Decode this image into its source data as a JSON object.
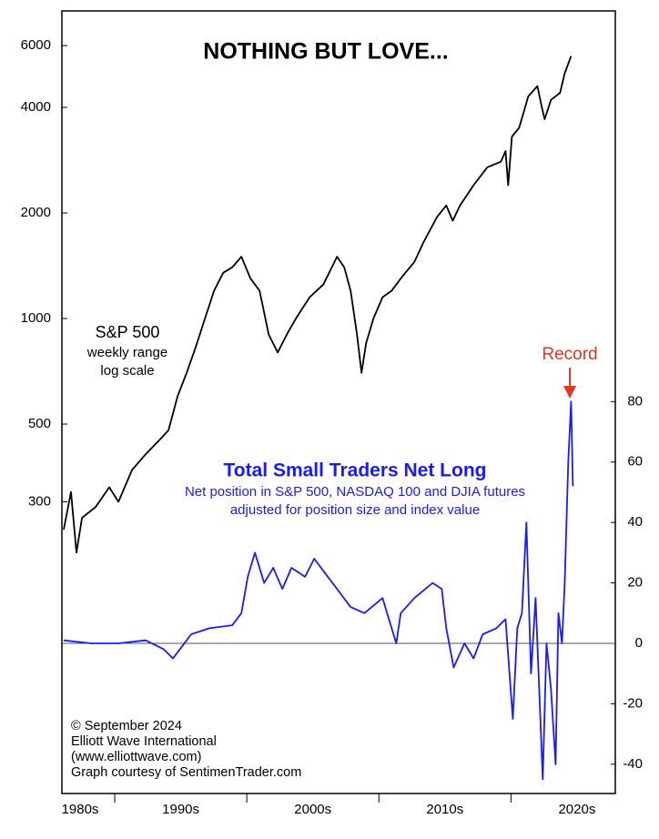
{
  "chart_data": {
    "type": "line",
    "title": "NOTHING BUT LOVE...",
    "yscale": "log",
    "xlim": [
      1986.0,
      2027.9
    ],
    "xticks": [
      1990,
      2000,
      2010,
      2020
    ],
    "xlabels": [
      {
        "value": 1985,
        "label": "1980s"
      },
      {
        "value": 1995,
        "label": "1990s"
      },
      {
        "value": 2005,
        "label": "2000s"
      },
      {
        "value": 2015,
        "label": "2010s"
      },
      {
        "value": 2025,
        "label": "2020s"
      }
    ],
    "ylim": [
      44.2,
      7535
    ],
    "yticks": [
      300,
      500,
      1000,
      2000,
      4000,
      6000
    ],
    "y2lim": [
      -49.7,
      209.3
    ],
    "y2ticks": [
      -40,
      -20,
      0,
      20,
      40,
      60,
      80
    ],
    "series": [
      {
        "name": "S&P 500",
        "color": "#000000",
        "notes": [
          "weekly range",
          "log scale"
        ],
        "x": [
          1986.14,
          1986.69,
          1987.1,
          1987.52,
          1988.55,
          1989.59,
          1990.28,
          1991.31,
          1992.34,
          1993.38,
          1994.07,
          1994.76,
          1995.45,
          1996.14,
          1996.83,
          1997.52,
          1998.21,
          1998.9,
          1999.59,
          2000.28,
          2000.97,
          2001.66,
          2002.34,
          2003.03,
          2003.72,
          2004.76,
          2005.79,
          2006.83,
          2007.38,
          2007.86,
          2008.34,
          2008.69,
          2009.03,
          2009.59,
          2010.28,
          2010.97,
          2011.66,
          2012.0,
          2012.69,
          2013.38,
          2014.41,
          2015.1,
          2015.59,
          2016.14,
          2017.17,
          2018.21,
          2019.24,
          2019.59,
          2019.79,
          2020.07,
          2020.62,
          2021.31,
          2022.0,
          2022.34,
          2022.55,
          2023.03,
          2023.72,
          2024.07,
          2024.55
        ],
        "values": [
          250,
          320,
          215,
          270,
          290,
          330,
          300,
          370,
          410,
          450,
          480,
          600,
          700,
          830,
          1000,
          1200,
          1350,
          1400,
          1500,
          1300,
          1200,
          900,
          800,
          900,
          1000,
          1150,
          1250,
          1500,
          1400,
          1200,
          900,
          700,
          850,
          1000,
          1150,
          1200,
          1300,
          1350,
          1450,
          1650,
          1950,
          2100,
          1900,
          2100,
          2400,
          2700,
          2800,
          3000,
          2400,
          3300,
          3500,
          4300,
          4600,
          4000,
          3700,
          4200,
          4400,
          5000,
          5600
        ]
      },
      {
        "name": "Total Small Traders Net Long",
        "color": "#1a1aff",
        "axis": "y2",
        "notes": [
          "Net position in S&P 500, NASDAQ 100  and DJIA futures",
          "adjusted for position size and index value"
        ],
        "x": [
          1986.14,
          1988.21,
          1990.28,
          1992.34,
          1993.72,
          1994.41,
          1995.1,
          1995.79,
          1997.17,
          1998.9,
          1999.59,
          2000.07,
          2000.62,
          2001.31,
          2002.0,
          2002.69,
          2003.38,
          2004.41,
          2005.1,
          2006.14,
          2006.83,
          2007.86,
          2008.9,
          2010.28,
          2011.31,
          2011.66,
          2012.69,
          2014.07,
          2014.76,
          2015.1,
          2015.66,
          2016.48,
          2017.17,
          2017.86,
          2018.9,
          2019.59,
          2020.14,
          2020.48,
          2020.83,
          2021.17,
          2021.52,
          2021.86,
          2022.41,
          2022.69,
          2023.03,
          2023.38,
          2023.59,
          2023.86,
          2024.07,
          2024.34,
          2024.55,
          2024.69
        ],
        "values": [
          1,
          0,
          0,
          1,
          -2,
          -5,
          -1,
          3,
          5,
          6,
          10,
          22,
          30,
          20,
          25,
          18,
          25,
          22,
          28,
          22,
          18,
          12,
          10,
          15,
          0,
          10,
          15,
          20,
          18,
          5,
          -8,
          0,
          -5,
          3,
          5,
          8,
          -25,
          5,
          10,
          40,
          -10,
          15,
          -45,
          0,
          -15,
          -40,
          10,
          0,
          20,
          60,
          80,
          52
        ]
      }
    ],
    "annotations": {
      "record": "Record"
    },
    "footer": [
      "© September 2024",
      "Elliott Wave International",
      "(www.elliottwave.com)",
      "Graph courtesy of SentimenTrader.com"
    ]
  }
}
